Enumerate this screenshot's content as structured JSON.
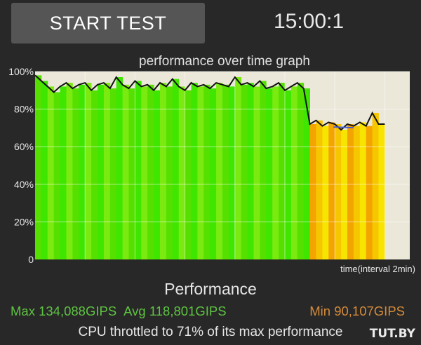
{
  "toolbar": {
    "start_label": "START TEST",
    "timer": "15:00:1"
  },
  "graph": {
    "title": "performance over time graph"
  },
  "chart_data": {
    "type": "area",
    "title": "performance over time graph",
    "xlabel": "time(interval 2min)",
    "ylabel": "",
    "y_ticks": [
      "100%",
      "80%",
      "60%",
      "40%",
      "20%",
      "0"
    ],
    "ylim": [
      0,
      100
    ],
    "xlim": [
      0,
      15
    ],
    "x_minutes": [
      0,
      0.25,
      0.5,
      0.75,
      1.0,
      1.25,
      1.5,
      1.75,
      2.0,
      2.25,
      2.5,
      2.75,
      3.0,
      3.25,
      3.5,
      3.75,
      4.0,
      4.25,
      4.5,
      4.75,
      5.0,
      5.25,
      5.5,
      5.75,
      6.0,
      6.25,
      6.5,
      6.75,
      7.0,
      7.25,
      7.5,
      7.75,
      8.0,
      8.25,
      8.5,
      8.75,
      9.0,
      9.25,
      9.5,
      9.75,
      10.0,
      10.25,
      10.5,
      10.75,
      11.0,
      11.25,
      11.5,
      11.75,
      12.0,
      12.25,
      12.5,
      12.75,
      13.0,
      13.25,
      13.5,
      13.75
    ],
    "performance_pct": [
      98,
      95,
      92,
      89,
      92,
      94,
      91,
      93,
      94,
      90,
      93,
      94,
      91,
      97,
      93,
      91,
      95,
      92,
      93,
      90,
      94,
      92,
      96,
      92,
      90,
      94,
      92,
      93,
      91,
      94,
      93,
      92,
      97,
      93,
      94,
      92,
      95,
      91,
      92,
      94,
      90,
      92,
      94,
      91,
      72,
      74,
      71,
      73,
      72,
      69,
      72,
      71,
      73,
      71,
      78,
      72
    ],
    "zone_colors": {
      "high": "#3ee600",
      "low": "#f7e400"
    }
  },
  "stats": {
    "title": "Performance",
    "max": "Max 134,088GIPS",
    "avg": "Avg 118,801GIPS",
    "min": "Min 90,107GIPS",
    "throttle": "CPU throttled to 71% of its max performance"
  },
  "watermark": "TUT.BY"
}
